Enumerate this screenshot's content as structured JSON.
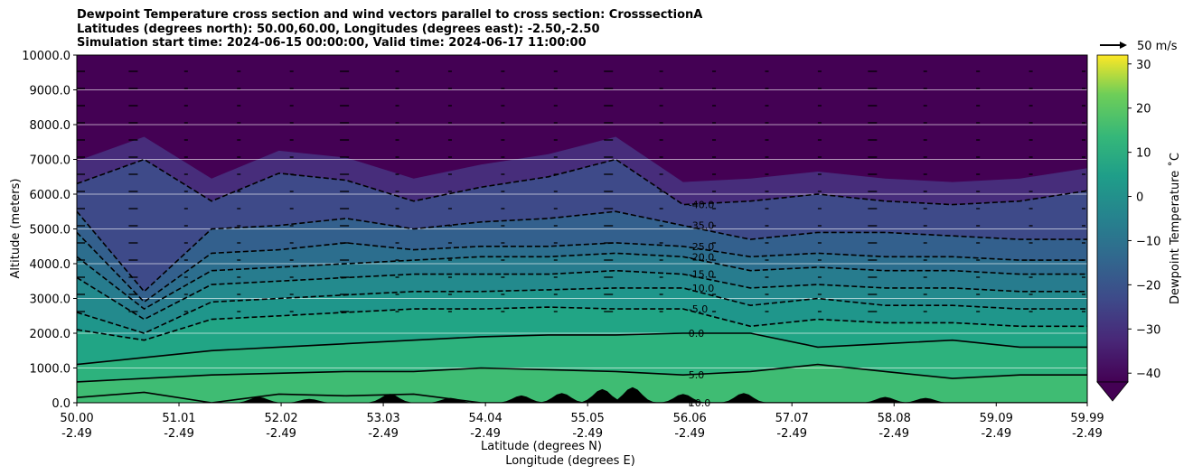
{
  "chart_data": {
    "type": "contour",
    "title_lines": [
      "Dewpoint Temperature cross section and wind vectors parallel to cross section: CrosssectionA",
      "Latitudes (degrees north): 50.00,60.00, Longitudes (degrees east): -2.50,-2.50",
      "Simulation start time: 2024-06-15 00:00:00, Valid time: 2024-06-17 11:00:00"
    ],
    "xlabel": "Latitude (degrees N)",
    "xlabel2": "Longitude (degrees E)",
    "ylabel": "Altitude (meters)",
    "ylim": [
      0,
      10000
    ],
    "xlim": [
      50.0,
      59.99
    ],
    "y_ticks": [
      "0.0",
      "1000.0",
      "2000.0",
      "3000.0",
      "4000.0",
      "5000.0",
      "6000.0",
      "7000.0",
      "8000.0",
      "9000.0",
      "10000.0"
    ],
    "y_tick_values": [
      0,
      1000,
      2000,
      3000,
      4000,
      5000,
      6000,
      7000,
      8000,
      9000,
      10000
    ],
    "x_tick_values": [
      50.0,
      51.01,
      52.02,
      53.03,
      54.04,
      55.05,
      56.06,
      57.07,
      58.08,
      59.09,
      59.99
    ],
    "x_ticks_lat": [
      "50.00",
      "51.01",
      "52.02",
      "53.03",
      "54.04",
      "55.05",
      "56.06",
      "57.07",
      "58.08",
      "59.09",
      "59.99"
    ],
    "x_ticks_lon": [
      "-2.49",
      "-2.49",
      "-2.49",
      "-2.49",
      "-2.49",
      "-2.49",
      "-2.49",
      "-2.49",
      "-2.49",
      "-2.49",
      "-2.49"
    ],
    "horizontal_grid": true,
    "colorbar": {
      "label": "Dewpoint Temperature ˚C",
      "ticks": [
        "30",
        "20",
        "10",
        "0",
        "−10",
        "−20",
        "−30",
        "−40"
      ],
      "tick_values": [
        30,
        20,
        10,
        0,
        -10,
        -20,
        -30,
        -40
      ],
      "range": [
        -42,
        32
      ],
      "extend": "min",
      "colormap": "viridis"
    },
    "quiver_key": "50 m/s",
    "contours": [
      {
        "level": 0,
        "label": "0.0",
        "style": "solid",
        "altitudes_m": [
          1100,
          1300,
          1500,
          1600,
          1700,
          1800,
          1900,
          1950,
          1950,
          2000,
          2000,
          1600,
          1700,
          1800,
          1600,
          1600
        ]
      },
      {
        "level": 5,
        "label": "5.0",
        "style": "solid",
        "altitudes_m": [
          600,
          700,
          800,
          850,
          900,
          900,
          1000,
          950,
          900,
          800,
          900,
          1100,
          900,
          700,
          800,
          800
        ]
      },
      {
        "level": 10,
        "label": "10.0",
        "style": "solid",
        "altitudes_m": [
          150,
          300,
          0,
          250,
          200,
          250,
          0,
          0,
          0,
          0,
          0,
          0,
          0,
          0,
          0,
          0
        ]
      },
      {
        "level": -5,
        "label": "-5.0",
        "style": "dashed",
        "altitudes_m": [
          2100,
          1800,
          2400,
          2500,
          2600,
          2700,
          2700,
          2750,
          2700,
          2700,
          2200,
          2400,
          2300,
          2300,
          2200,
          2200
        ]
      },
      {
        "level": -10,
        "label": "-10.0",
        "style": "dashed",
        "altitudes_m": [
          2600,
          2000,
          2900,
          3000,
          3100,
          3200,
          3200,
          3250,
          3300,
          3300,
          2800,
          3000,
          2800,
          2800,
          2700,
          2700
        ]
      },
      {
        "level": -15,
        "label": "-15.0",
        "style": "dashed",
        "altitudes_m": [
          3600,
          2400,
          3400,
          3500,
          3600,
          3700,
          3700,
          3700,
          3800,
          3700,
          3300,
          3400,
          3300,
          3300,
          3200,
          3200
        ]
      },
      {
        "level": -20,
        "label": "-20.0",
        "style": "dashed",
        "altitudes_m": [
          4200,
          2700,
          3800,
          3900,
          4000,
          4100,
          4200,
          4200,
          4300,
          4200,
          3800,
          3900,
          3800,
          3800,
          3700,
          3700
        ]
      },
      {
        "level": -25,
        "label": "-25.0",
        "style": "dashed",
        "altitudes_m": [
          4900,
          2900,
          4300,
          4400,
          4600,
          4400,
          4500,
          4500,
          4600,
          4500,
          4200,
          4300,
          4200,
          4200,
          4100,
          4100
        ]
      },
      {
        "level": -35,
        "label": "-35.0",
        "style": "dashed",
        "altitudes_m": [
          5500,
          3200,
          5000,
          5100,
          5300,
          5000,
          5200,
          5300,
          5500,
          5100,
          4700,
          4900,
          4900,
          4800,
          4700,
          4700
        ]
      },
      {
        "level": -40,
        "label": "-40.0",
        "style": "dashed",
        "altitudes_m": [
          6300,
          7000,
          5800,
          6600,
          6400,
          5800,
          6200,
          6500,
          7000,
          5700,
          5800,
          6000,
          5800,
          5700,
          5800,
          6100
        ]
      }
    ]
  }
}
